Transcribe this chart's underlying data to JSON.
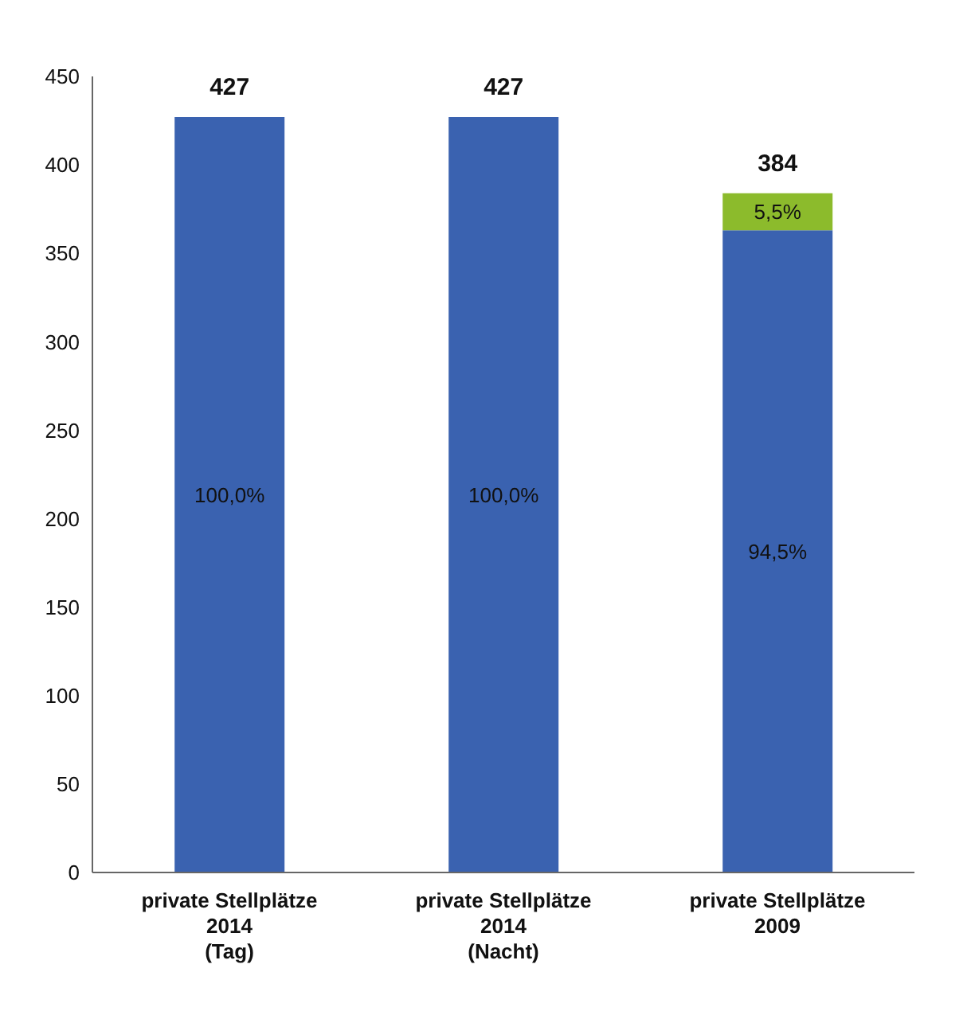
{
  "chart_data": {
    "type": "bar",
    "stacked": true,
    "categories": [
      "private Stellplätze\n2014\n(Tag)",
      "private Stellplätze\n2014\n(Nacht)",
      "private Stellplätze\n2009"
    ],
    "series": [
      {
        "color": "#3a62b0",
        "values": [
          427,
          427,
          363
        ]
      },
      {
        "color": "#8cbb2c",
        "values": [
          null,
          null,
          21
        ]
      }
    ],
    "annotations": [
      "100,0%",
      "100,0%",
      "94,5%",
      "5,5%"
    ],
    "totals": [
      "427",
      "427",
      "384"
    ],
    "ylim": [
      0,
      450
    ],
    "yticks": [
      0,
      50,
      100,
      150,
      200,
      250,
      300,
      350,
      400,
      450
    ],
    "grid": false,
    "legend": false
  }
}
